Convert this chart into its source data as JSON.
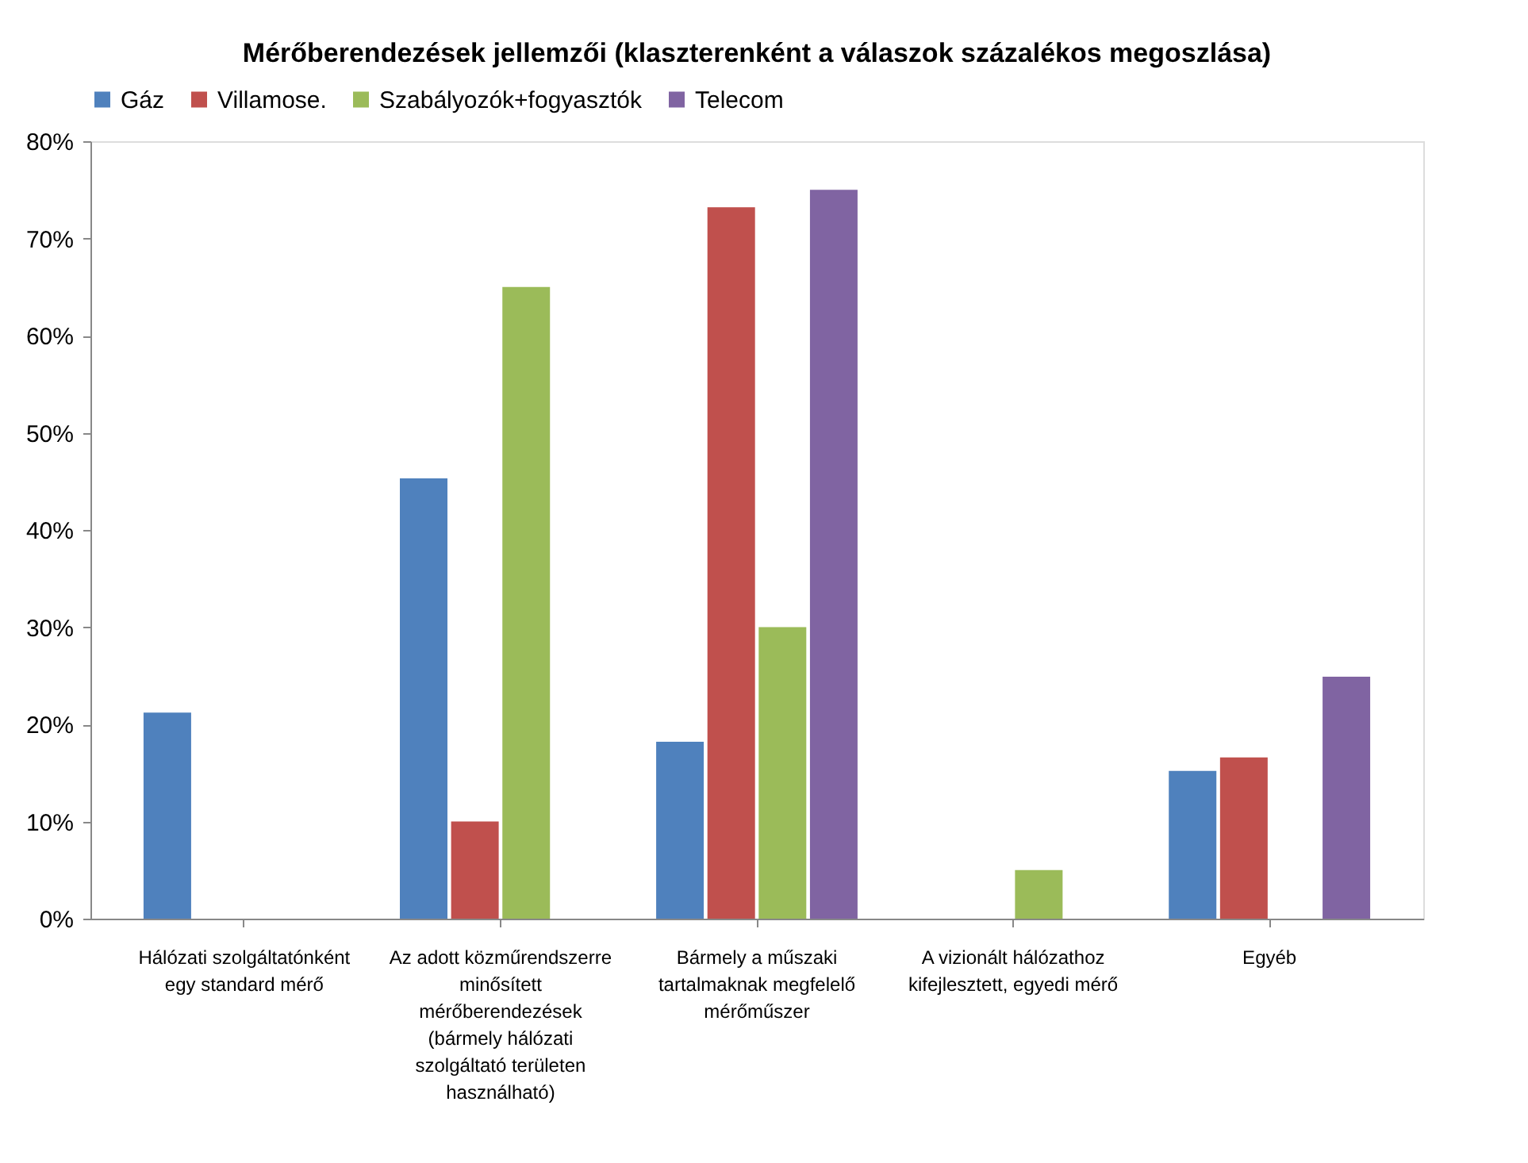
{
  "chart_data": {
    "type": "bar",
    "title": "Mérőberendezések jellemzői (klaszterenként a válaszok százalékos megoszlása)",
    "categories": [
      "Hálózati szolgáltatónként\negy standard mérő",
      "Az adott közműrendszerre\nminősített\nmérőberendezések\n(bármely hálózati\nszolgáltató területen\nhasználható)",
      "Bármely a műszaki\ntartalmaknak megfelelő\nmérőműszer",
      "A vizionált hálózathoz\nkifejlesztett, egyedi mérő",
      "Egyéb"
    ],
    "series": [
      {
        "name": "Gáz",
        "color": "#4f81bd",
        "values": [
          21.2,
          45.3,
          18.2,
          0,
          15.2
        ]
      },
      {
        "name": "Villamose.",
        "color": "#c0504d",
        "values": [
          0,
          10,
          73.2,
          0,
          16.6
        ]
      },
      {
        "name": "Szabályozók+fogyasztók",
        "color": "#9bbb59",
        "values": [
          0,
          65,
          30,
          5,
          0
        ]
      },
      {
        "name": "Telecom",
        "color": "#8064a2",
        "values": [
          0,
          0,
          75,
          0,
          24.9
        ]
      }
    ],
    "ylim": [
      0,
      80
    ],
    "yticks": [
      {
        "value": 0,
        "label": "0%"
      },
      {
        "value": 10,
        "label": "10%"
      },
      {
        "value": 20,
        "label": "20%"
      },
      {
        "value": 30,
        "label": "30%"
      },
      {
        "value": 40,
        "label": "40%"
      },
      {
        "value": 50,
        "label": "50%"
      },
      {
        "value": 60,
        "label": "60%"
      },
      {
        "value": 70,
        "label": "70%"
      },
      {
        "value": 80,
        "label": "80%"
      }
    ],
    "grid": false,
    "legend": "top"
  }
}
